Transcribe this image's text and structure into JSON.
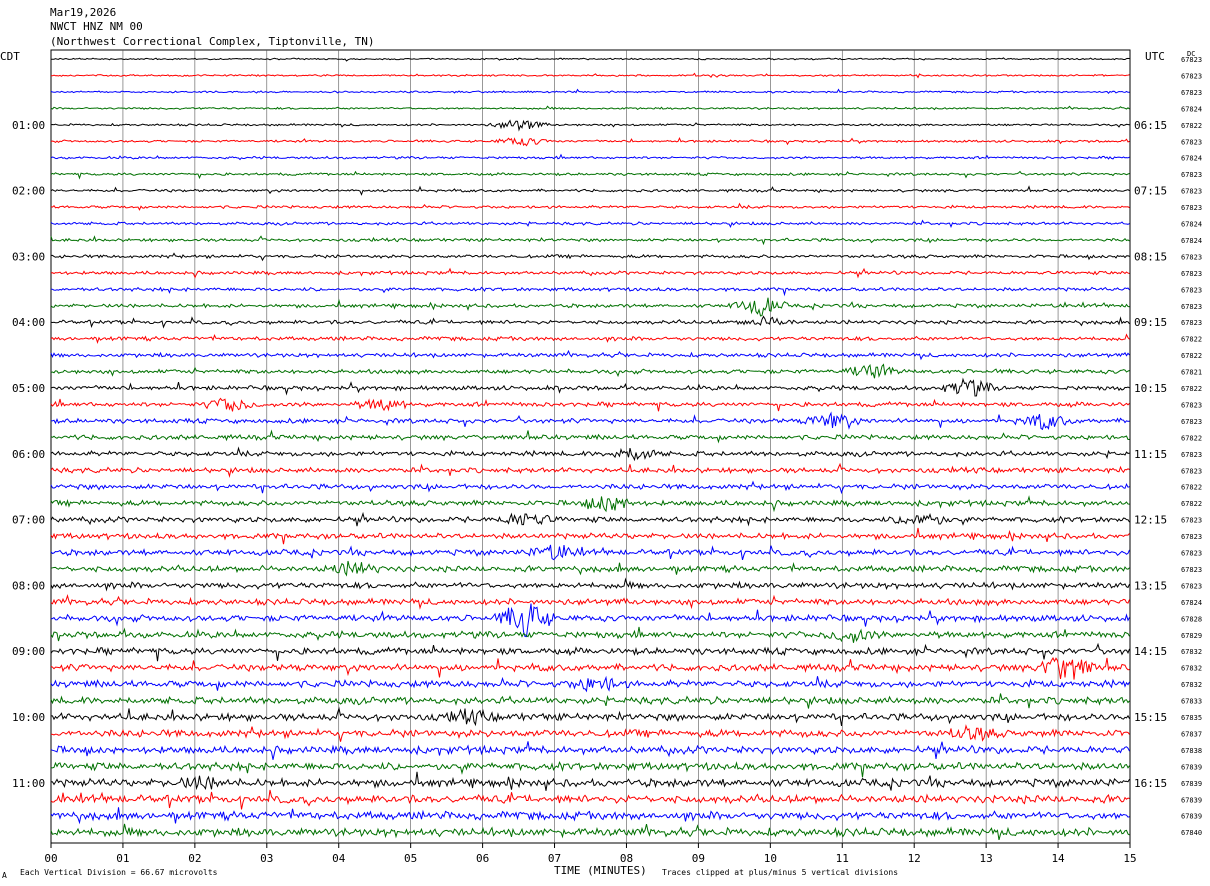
{
  "header": {
    "date": "Mar19,2026",
    "station": "NWCT HNZ NM 00",
    "location": "(Northwest Correctional Complex, Tiptonville, TN)"
  },
  "left_timezone": "CDT",
  "right_timezone": "UTC",
  "dc_label": "DC",
  "footer": {
    "scale_note": "Each Vertical Division =   66.67 microvolts",
    "xlabel": "TIME (MINUTES)",
    "clip_note": "Traces clipped at plus/minus 5 vertical divisions",
    "corner_mark": "A"
  },
  "colors": {
    "traces": [
      "#000000",
      "#ff0000",
      "#0000ff",
      "#007000"
    ],
    "grid": "#000000"
  },
  "chart_data": {
    "type": "line",
    "title": "NWCT HNZ NM 00",
    "xlabel": "TIME (MINUTES)",
    "xlim": [
      0,
      15
    ],
    "x_ticks": [
      "00",
      "01",
      "02",
      "03",
      "04",
      "05",
      "06",
      "07",
      "08",
      "09",
      "10",
      "11",
      "12",
      "13",
      "14",
      "15"
    ],
    "trace_count": 48,
    "trace_interval_minutes": 15,
    "left_hour_labels": [
      "01:00",
      "02:00",
      "03:00",
      "04:00",
      "05:00",
      "06:00",
      "07:00",
      "08:00",
      "09:00",
      "10:00",
      "11:00"
    ],
    "right_hour_labels": [
      "06:15",
      "07:15",
      "08:15",
      "09:15",
      "10:15",
      "11:15",
      "12:15",
      "13:15",
      "14:15",
      "15:15",
      "16:15"
    ],
    "dc_offsets": [
      67823,
      67823,
      67823,
      67824,
      67822,
      67823,
      67824,
      67823,
      67823,
      67823,
      67824,
      67824,
      67823,
      67823,
      67823,
      67823,
      67823,
      67822,
      67822,
      67821,
      67822,
      67823,
      67823,
      67822,
      67823,
      67823,
      67822,
      67822,
      67823,
      67823,
      67823,
      67823,
      67823,
      67824,
      67828,
      67829,
      67832,
      67832,
      67832,
      67833,
      67835,
      67837,
      67838,
      67839,
      67839,
      67839,
      67839,
      67840
    ],
    "events": [
      {
        "trace": 5,
        "minute": 6.55,
        "amp": 4
      },
      {
        "trace": 4,
        "minute": 6.5,
        "amp": 5
      },
      {
        "trace": 15,
        "minute": 9.85,
        "amp": 9
      },
      {
        "trace": 16,
        "minute": 9.95,
        "amp": 4
      },
      {
        "trace": 21,
        "minute": 4.6,
        "amp": 5
      },
      {
        "trace": 19,
        "minute": 11.4,
        "amp": 6
      },
      {
        "trace": 20,
        "minute": 12.75,
        "amp": 8
      },
      {
        "trace": 21,
        "minute": 2.5,
        "amp": 6
      },
      {
        "trace": 22,
        "minute": 10.85,
        "amp": 7
      },
      {
        "trace": 22,
        "minute": 13.8,
        "amp": 7
      },
      {
        "trace": 24,
        "minute": 8.1,
        "amp": 6
      },
      {
        "trace": 27,
        "minute": 7.75,
        "amp": 7
      },
      {
        "trace": 28,
        "minute": 6.6,
        "amp": 6
      },
      {
        "trace": 28,
        "minute": 12.1,
        "amp": 6
      },
      {
        "trace": 30,
        "minute": 7.0,
        "amp": 6
      },
      {
        "trace": 31,
        "minute": 4.2,
        "amp": 6
      },
      {
        "trace": 34,
        "minute": 6.6,
        "amp": 16
      },
      {
        "trace": 35,
        "minute": 11.1,
        "amp": 6
      },
      {
        "trace": 37,
        "minute": 14.1,
        "amp": 14
      },
      {
        "trace": 38,
        "minute": 7.6,
        "amp": 6
      },
      {
        "trace": 40,
        "minute": 5.8,
        "amp": 5
      },
      {
        "trace": 41,
        "minute": 12.8,
        "amp": 5
      },
      {
        "trace": 44,
        "minute": 2.1,
        "amp": 5
      }
    ]
  }
}
